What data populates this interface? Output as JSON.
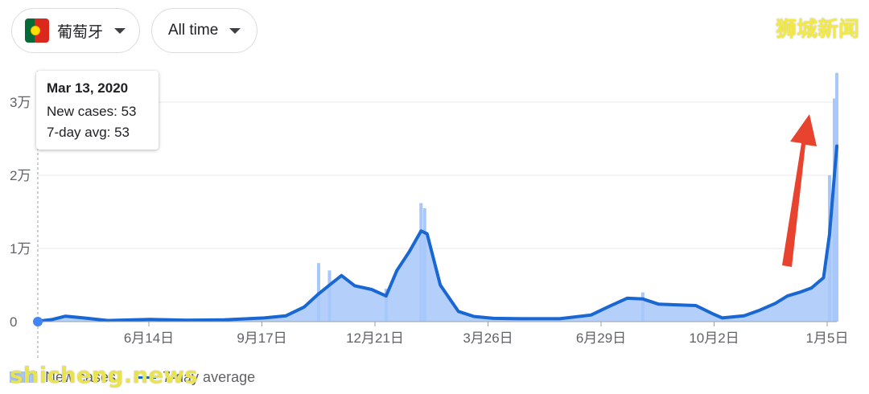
{
  "filters": {
    "country": "葡萄牙",
    "time_range": "All time"
  },
  "watermarks": {
    "top_right": "狮城新闻",
    "bottom_left": "shicheng.news"
  },
  "tooltip": {
    "date": "Mar 13, 2020",
    "new_cases": "New cases: 53",
    "avg": "7-day avg: 53"
  },
  "legend": {
    "new_cases": "New cases",
    "avg": "7-day average"
  },
  "colors": {
    "bars": "#a8c7fa",
    "line": "#1967d2",
    "arrow": "#e8432e",
    "grid": "#e8eaed"
  },
  "chart_data": {
    "type": "area",
    "y_ticks": [
      {
        "value": 0,
        "label": "0"
      },
      {
        "value": 10000,
        "label": "1万"
      },
      {
        "value": 20000,
        "label": "2万"
      },
      {
        "value": 30000,
        "label": "3万"
      }
    ],
    "ylim": [
      0,
      34000
    ],
    "x_ticks": [
      "6月14日",
      "9月17日",
      "12月21日",
      "3月26日",
      "6月29日",
      "10月2日",
      "1月5日"
    ],
    "series": [
      {
        "name": "7-day average",
        "x": [
          "2020-03-13",
          "2020-03-25",
          "2020-04-05",
          "2020-04-20",
          "2020-05-10",
          "2020-06-14",
          "2020-07-15",
          "2020-08-15",
          "2020-09-17",
          "2020-10-05",
          "2020-10-20",
          "2020-11-01",
          "2020-11-10",
          "2020-11-20",
          "2020-12-01",
          "2020-12-15",
          "2020-12-27",
          "2021-01-05",
          "2021-01-15",
          "2021-01-25",
          "2021-01-30",
          "2021-02-10",
          "2021-02-25",
          "2021-03-10",
          "2021-03-26",
          "2021-04-20",
          "2021-05-20",
          "2021-06-15",
          "2021-06-29",
          "2021-07-15",
          "2021-07-28",
          "2021-08-10",
          "2021-08-25",
          "2021-09-10",
          "2021-09-25",
          "2021-10-02",
          "2021-10-20",
          "2021-11-01",
          "2021-11-15",
          "2021-11-25",
          "2021-12-05",
          "2021-12-15",
          "2021-12-25",
          "2021-12-30",
          "2022-01-02",
          "2022-01-05"
        ],
        "values": [
          53,
          300,
          750,
          500,
          150,
          300,
          200,
          250,
          500,
          800,
          2000,
          3800,
          5000,
          6300,
          4900,
          4400,
          3500,
          7000,
          9500,
          12400,
          12000,
          5000,
          1400,
          700,
          450,
          400,
          400,
          900,
          2000,
          3200,
          3100,
          2400,
          2300,
          2200,
          1000,
          500,
          800,
          1500,
          2500,
          3500,
          4000,
          4600,
          6000,
          12000,
          18000,
          24000
        ]
      },
      {
        "name": "New cases",
        "x": [
          "2020-11-01",
          "2020-11-10",
          "2020-12-27",
          "2021-01-25",
          "2021-01-28",
          "2021-07-28",
          "2021-12-30",
          "2022-01-03",
          "2022-01-05"
        ],
        "values": [
          8000,
          7000,
          4500,
          16200,
          15500,
          4000,
          20000,
          30500,
          34000
        ]
      }
    ]
  }
}
